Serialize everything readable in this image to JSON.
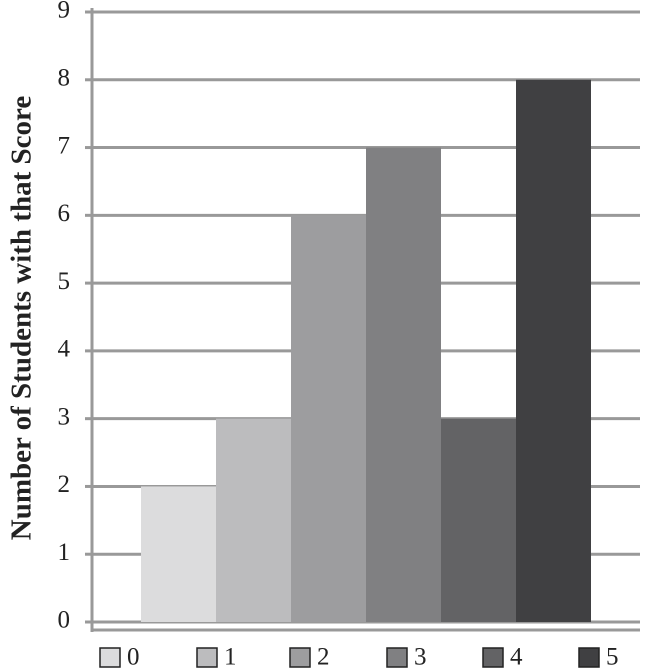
{
  "chart_data": {
    "type": "bar",
    "y_label": "Number of Students with that Score",
    "categories": [
      null
    ],
    "series": [
      {
        "name": "0",
        "color": "#dcdcdd",
        "values": [
          2
        ]
      },
      {
        "name": "1",
        "color": "#bcbcbe",
        "values": [
          3
        ]
      },
      {
        "name": "2",
        "color": "#9d9d9f",
        "values": [
          6
        ]
      },
      {
        "name": "3",
        "color": "#808082",
        "values": [
          7
        ]
      },
      {
        "name": "4",
        "color": "#636365",
        "values": [
          3
        ]
      },
      {
        "name": "5",
        "color": "#404042",
        "values": [
          8
        ]
      }
    ],
    "ylim": [
      0,
      9
    ],
    "yticks": [
      0,
      1,
      2,
      3,
      4,
      5,
      6,
      7,
      8,
      9
    ],
    "grid": true,
    "legend": "bottom"
  }
}
